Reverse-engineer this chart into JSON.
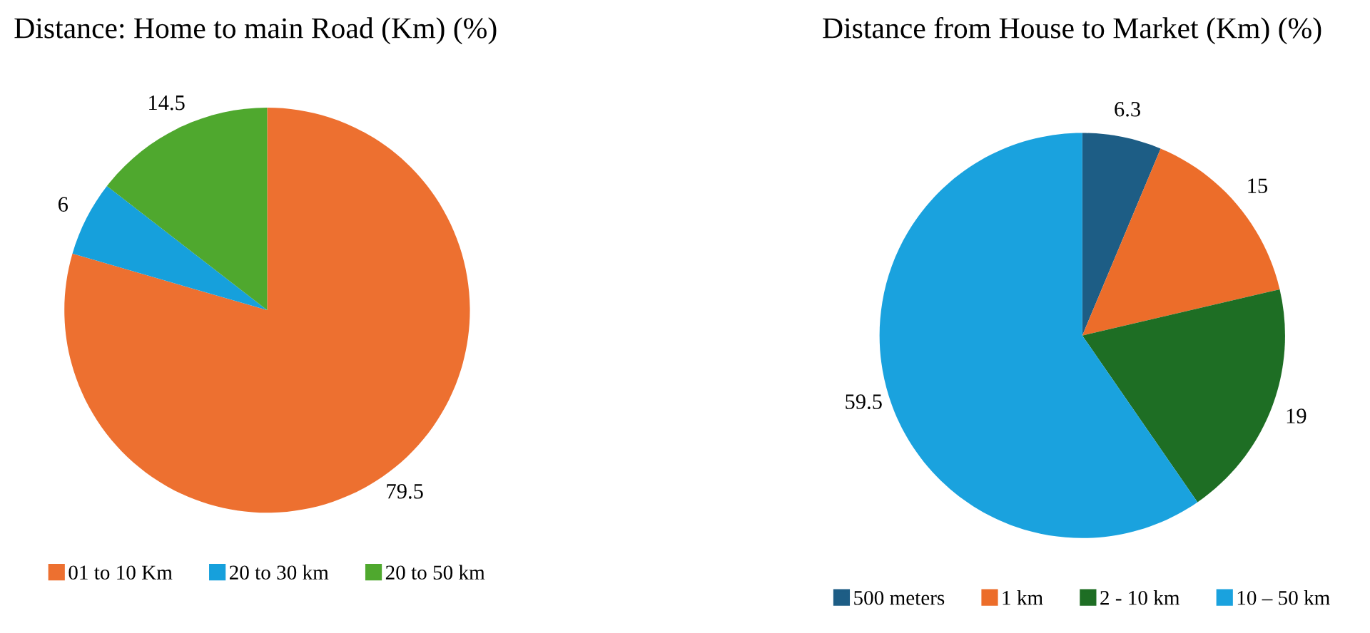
{
  "chart_data": [
    {
      "type": "pie",
      "title": "Distance: Home to main Road (Km) (%)",
      "categories": [
        "01 to 10 Km",
        "20 to 30 km",
        "20 to 50 km"
      ],
      "values": [
        79.5,
        6,
        14.5
      ],
      "colors": [
        "#ed7030",
        "#16a0dc",
        "#4fa82e"
      ],
      "data_labels": true,
      "legend": "bottom"
    },
    {
      "type": "pie",
      "title": "Distance from House to Market (Km) (%)",
      "categories": [
        "500 meters",
        "1 km",
        "2 - 10 km",
        "10 – 50 km"
      ],
      "values": [
        6.3,
        15,
        19,
        59.5
      ],
      "colors": [
        "#1d5d85",
        "#ec6d2a",
        "#1e6e24",
        "#1aa2de"
      ],
      "data_labels": true,
      "legend": "bottom"
    }
  ]
}
